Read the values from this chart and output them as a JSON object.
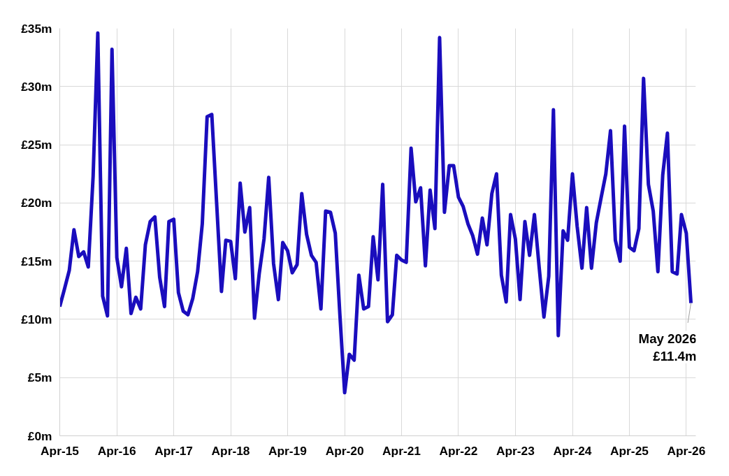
{
  "chart_data": {
    "type": "line",
    "x": [
      "2015-04",
      "2015-05",
      "2015-06",
      "2015-07",
      "2015-08",
      "2015-09",
      "2015-10",
      "2015-11",
      "2015-12",
      "2016-01",
      "2016-02",
      "2016-03",
      "2016-04",
      "2016-05",
      "2016-06",
      "2016-07",
      "2016-08",
      "2016-09",
      "2016-10",
      "2016-11",
      "2016-12",
      "2017-01",
      "2017-02",
      "2017-03",
      "2017-04",
      "2017-05",
      "2017-06",
      "2017-07",
      "2017-08",
      "2017-09",
      "2017-10",
      "2017-11",
      "2017-12",
      "2018-01",
      "2018-02",
      "2018-03",
      "2018-04",
      "2018-05",
      "2018-06",
      "2018-07",
      "2018-08",
      "2018-09",
      "2018-10",
      "2018-11",
      "2018-12",
      "2019-01",
      "2019-02",
      "2019-03",
      "2019-04",
      "2019-05",
      "2019-06",
      "2019-07",
      "2019-08",
      "2019-09",
      "2019-10",
      "2019-11",
      "2019-12",
      "2020-01",
      "2020-02",
      "2020-03",
      "2020-04",
      "2020-05",
      "2020-06",
      "2020-07",
      "2020-08",
      "2020-09",
      "2020-10",
      "2020-11",
      "2020-12",
      "2021-01",
      "2021-02",
      "2021-03",
      "2021-04",
      "2021-05",
      "2021-06",
      "2021-07",
      "2021-08",
      "2021-09",
      "2021-10",
      "2021-11",
      "2021-12",
      "2022-01",
      "2022-02",
      "2022-03",
      "2022-04",
      "2022-05",
      "2022-06",
      "2022-07",
      "2022-08",
      "2022-09",
      "2022-10",
      "2022-11",
      "2022-12",
      "2023-01",
      "2023-02",
      "2023-03",
      "2023-04",
      "2023-05",
      "2023-06",
      "2023-07",
      "2023-08",
      "2023-09",
      "2023-10",
      "2023-11",
      "2023-12",
      "2024-01",
      "2024-02",
      "2024-03",
      "2024-04",
      "2024-05",
      "2024-06",
      "2024-07",
      "2024-08",
      "2024-09",
      "2024-10",
      "2024-11",
      "2024-12",
      "2025-01",
      "2025-02",
      "2025-03",
      "2025-04",
      "2025-05",
      "2025-06",
      "2025-07",
      "2025-08",
      "2025-09",
      "2025-10",
      "2025-11",
      "2025-12",
      "2026-01",
      "2026-02",
      "2026-03",
      "2026-04",
      "2026-05"
    ],
    "series": [
      {
        "color": "#1a0dbd",
        "values": [
          11.1,
          12.6,
          14.2,
          17.7,
          15.4,
          15.8,
          14.5,
          22.3,
          34.6,
          12.0,
          10.3,
          33.2,
          15.3,
          12.8,
          16.1,
          10.5,
          11.9,
          10.9,
          16.4,
          18.4,
          18.8,
          13.6,
          11.1,
          18.4,
          18.6,
          12.3,
          10.7,
          10.4,
          11.8,
          14.1,
          18.2,
          27.4,
          27.6,
          20.0,
          12.4,
          16.8,
          16.7,
          13.5,
          21.7,
          17.5,
          19.6,
          10.1,
          13.9,
          16.9,
          22.2,
          14.8,
          11.7,
          16.6,
          15.9,
          14.0,
          14.7,
          20.8,
          17.3,
          15.5,
          14.9,
          10.9,
          19.3,
          19.2,
          17.4,
          10.5,
          3.7,
          7.0,
          6.5,
          13.8,
          10.9,
          11.1,
          17.1,
          13.4,
          21.6,
          9.8,
          10.4,
          15.5,
          15.1,
          14.9,
          24.7,
          20.1,
          21.3,
          14.6,
          21.1,
          17.8,
          34.2,
          19.2,
          23.2,
          23.2,
          20.5,
          19.7,
          18.2,
          17.2,
          15.6,
          18.7,
          16.4,
          20.8,
          22.5,
          13.8,
          11.5,
          19.0,
          16.9,
          11.7,
          18.4,
          15.5,
          19.0,
          14.4,
          10.2,
          13.7,
          28.0,
          8.6,
          17.6,
          16.8,
          22.5,
          18.0,
          14.4,
          19.6,
          14.4,
          18.3,
          20.4,
          22.5,
          26.2,
          16.8,
          15.0,
          26.6,
          16.2,
          15.9,
          17.8,
          30.7,
          21.6,
          19.3,
          14.1,
          22.4,
          26.0,
          14.1,
          13.9,
          19.0,
          17.4,
          11.4
        ]
      }
    ],
    "xlim": [
      "2015-04",
      "2026-06"
    ],
    "xticks": [
      {
        "value": "2015-04",
        "label": "Apr-15"
      },
      {
        "value": "2016-04",
        "label": "Apr-16"
      },
      {
        "value": "2017-04",
        "label": "Apr-17"
      },
      {
        "value": "2018-04",
        "label": "Apr-18"
      },
      {
        "value": "2019-04",
        "label": "Apr-19"
      },
      {
        "value": "2020-04",
        "label": "Apr-20"
      },
      {
        "value": "2021-04",
        "label": "Apr-21"
      },
      {
        "value": "2022-04",
        "label": "Apr-22"
      },
      {
        "value": "2023-04",
        "label": "Apr-23"
      },
      {
        "value": "2024-04",
        "label": "Apr-24"
      },
      {
        "value": "2025-04",
        "label": "Apr-25"
      },
      {
        "value": "2026-04",
        "label": "Apr-26"
      }
    ],
    "ylim": [
      0,
      35
    ],
    "yticks": [
      {
        "value": 0,
        "label": "£0m"
      },
      {
        "value": 5,
        "label": "£5m"
      },
      {
        "value": 10,
        "label": "£10m"
      },
      {
        "value": 15,
        "label": "£15m"
      },
      {
        "value": 20,
        "label": "£20m"
      },
      {
        "value": 25,
        "label": "£25m"
      },
      {
        "value": 30,
        "label": "£30m"
      },
      {
        "value": 35,
        "label": "£35m"
      }
    ],
    "grid": true,
    "line_style": "solid",
    "marker": "none",
    "annotations": [
      {
        "text": "May 2026\n£11.4m",
        "x": "2026-05",
        "y": 11.4
      }
    ]
  }
}
